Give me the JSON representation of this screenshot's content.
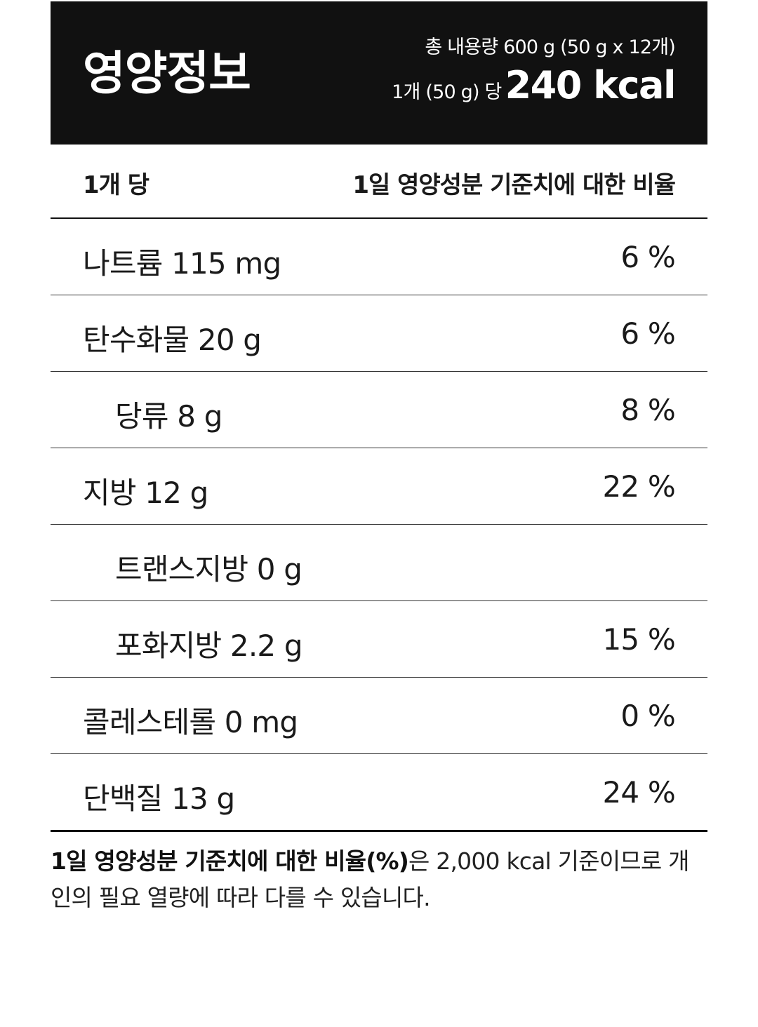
{
  "header": {
    "title": "영양정보",
    "total_amount": "총 내용량 600 g (50 g x 12개)",
    "per_serving_label": "1개 (50 g) 당",
    "calories": "240 kcal"
  },
  "columns": {
    "left": "1개 당",
    "right": "1일 영양성분 기준치에 대한 비율"
  },
  "nutrients": [
    {
      "name": "나트륨 115 mg",
      "percent": "6 %",
      "sub": false
    },
    {
      "name": "탄수화물 20 g",
      "percent": "6 %",
      "sub": false
    },
    {
      "name": "당류 8 g",
      "percent": "8 %",
      "sub": true
    },
    {
      "name": "지방 12 g",
      "percent": "22 %",
      "sub": false
    },
    {
      "name": "트랜스지방 0 g",
      "percent": "",
      "sub": true
    },
    {
      "name": "포화지방 2.2 g",
      "percent": "15 %",
      "sub": true
    },
    {
      "name": "콜레스테롤 0 mg",
      "percent": "0 %",
      "sub": false
    },
    {
      "name": "단백질 13 g",
      "percent": "24 %",
      "sub": false
    }
  ],
  "footnote": {
    "bold": "1일 영양성분 기준치에 대한 비율(%)",
    "rest": "은 2,000 kcal 기준이므로 개인의 필요 열량에 따라 다를 수 있습니다."
  }
}
